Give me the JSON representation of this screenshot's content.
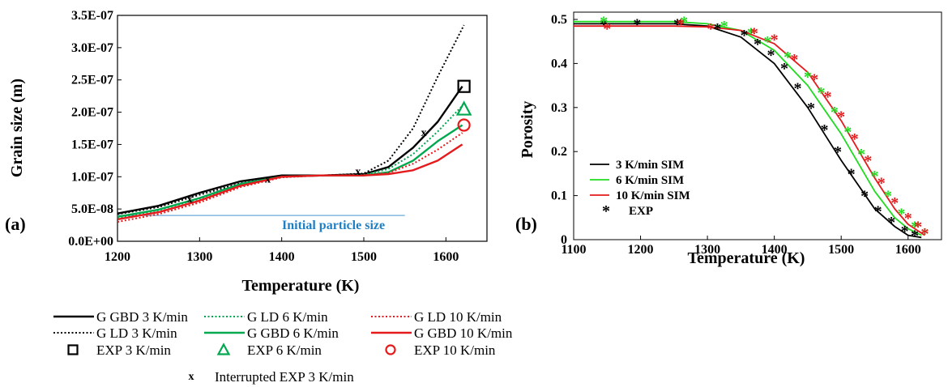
{
  "chart_data": [
    {
      "panel_label": "(a)",
      "type": "line",
      "xlabel": "Temperature (K)",
      "ylabel": "Grain size (m)",
      "xlim": [
        1200,
        1650
      ],
      "ylim": [
        0,
        3.5e-07
      ],
      "x_ticks": [
        "1200",
        "1300",
        "1400",
        "1500",
        "1600"
      ],
      "y_ticks": [
        "0.0E+00",
        "5.0E-08",
        "1.0E-07",
        "1.5E-07",
        "2.0E-07",
        "2.5E-07",
        "3.0E-07",
        "3.5E-07"
      ],
      "annotation": "Initial particle size",
      "initial_particle_size": 4e-08,
      "legend_position": "below",
      "series": [
        {
          "name": "G GBD 3 K/min",
          "color": "#000000",
          "style": "solid",
          "x": [
            1200,
            1250,
            1300,
            1350,
            1400,
            1450,
            1500,
            1530,
            1560,
            1590,
            1620
          ],
          "y": [
            4.3e-08,
            5.5e-08,
            7.5e-08,
            9.3e-08,
            1.02e-07,
            1.02e-07,
            1.04e-07,
            1.15e-07,
            1.45e-07,
            1.85e-07,
            2.4e-07
          ]
        },
        {
          "name": "G LD 3 K/min",
          "color": "#000000",
          "style": "dotted",
          "x": [
            1200,
            1250,
            1300,
            1350,
            1400,
            1450,
            1500,
            1530,
            1560,
            1590,
            1622
          ],
          "y": [
            4.2e-08,
            5.3e-08,
            7.2e-08,
            9e-08,
            1e-07,
            1.02e-07,
            1.05e-07,
            1.25e-07,
            1.75e-07,
            2.55e-07,
            3.35e-07
          ]
        },
        {
          "name": "G LD 6 K/min",
          "color": "#00a84f",
          "style": "dotted",
          "x": [
            1200,
            1250,
            1300,
            1350,
            1400,
            1450,
            1500,
            1530,
            1560,
            1590,
            1620
          ],
          "y": [
            3.6e-08,
            4.8e-08,
            6.6e-08,
            8.8e-08,
            1e-07,
            1.02e-07,
            1.03e-07,
            1.12e-07,
            1.35e-07,
            1.7e-07,
            2.1e-07
          ]
        },
        {
          "name": "G GBD 6 K/min",
          "color": "#00a84f",
          "style": "solid",
          "x": [
            1200,
            1250,
            1300,
            1350,
            1400,
            1450,
            1500,
            1530,
            1560,
            1590,
            1620
          ],
          "y": [
            3.8e-08,
            4.9e-08,
            6.7e-08,
            8.9e-08,
            1e-07,
            1.02e-07,
            1.02e-07,
            1.07e-07,
            1.25e-07,
            1.55e-07,
            1.8e-07
          ]
        },
        {
          "name": "G LD 10 K/min",
          "color": "#e41a1c",
          "style": "dotted",
          "x": [
            1200,
            1250,
            1300,
            1350,
            1400,
            1450,
            1500,
            1530,
            1560,
            1590,
            1620
          ],
          "y": [
            3e-08,
            4.2e-08,
            6e-08,
            8.4e-08,
            9.9e-08,
            1.02e-07,
            1.02e-07,
            1.06e-07,
            1.2e-07,
            1.42e-07,
            1.68e-07
          ]
        },
        {
          "name": "G GBD 10 K/min",
          "color": "#e41a1c",
          "style": "solid",
          "x": [
            1200,
            1250,
            1300,
            1350,
            1400,
            1450,
            1500,
            1530,
            1560,
            1590,
            1620
          ],
          "y": [
            3.4e-08,
            4.5e-08,
            6.3e-08,
            8.6e-08,
            1e-07,
            1.02e-07,
            1.02e-07,
            1.04e-07,
            1.1e-07,
            1.25e-07,
            1.5e-07
          ]
        }
      ],
      "markers": [
        {
          "name": "EXP 3 K/min",
          "color": "#000000",
          "symbol": "square",
          "x": [
            1622
          ],
          "y": [
            2.4e-07
          ]
        },
        {
          "name": "EXP 6 K/min",
          "color": "#00a84f",
          "symbol": "triangle",
          "x": [
            1622
          ],
          "y": [
            2.05e-07
          ]
        },
        {
          "name": "EXP 10 K/min",
          "color": "#e41a1c",
          "symbol": "circle",
          "x": [
            1622
          ],
          "y": [
            1.8e-07
          ]
        },
        {
          "name": "Interrupted EXP 3 K/min",
          "color": "#000000",
          "symbol": "x",
          "x": [
            1288,
            1383,
            1493,
            1573
          ],
          "y": [
            6.5e-08,
            9.6e-08,
            1.08e-07,
            1.68e-07
          ]
        }
      ],
      "legend": [
        {
          "label": "G GBD 3 K/min",
          "color": "#000000",
          "kind": "solid"
        },
        {
          "label": "G LD 6 K/min",
          "color": "#00a84f",
          "kind": "dotted"
        },
        {
          "label": "G LD 10 K/min",
          "color": "#e41a1c",
          "kind": "dotted"
        },
        {
          "label": "G LD 3 K/min",
          "color": "#000000",
          "kind": "dotted"
        },
        {
          "label": "G GBD 6 K/min",
          "color": "#00a84f",
          "kind": "solid"
        },
        {
          "label": "G GBD 10 K/min",
          "color": "#e41a1c",
          "kind": "solid"
        },
        {
          "label": "EXP 3 K/min",
          "color": "#000000",
          "kind": "square"
        },
        {
          "label": "EXP 6 K/min",
          "color": "#00a84f",
          "kind": "triangle"
        },
        {
          "label": "EXP 10 K/min",
          "color": "#e41a1c",
          "kind": "circle"
        },
        {
          "label": "Interrupted EXP 3 K/min",
          "color": "#000000",
          "kind": "x"
        }
      ]
    },
    {
      "panel_label": "(b)",
      "type": "line",
      "xlabel": "Temperature (K)",
      "ylabel": "Porosity",
      "xlim": [
        1100,
        1650
      ],
      "ylim": [
        0,
        0.5
      ],
      "x_ticks": [
        "1100",
        "1200",
        "1300",
        "1400",
        "1500",
        "1600"
      ],
      "y_ticks": [
        "0",
        "0.1",
        "0.2",
        "0.3",
        "0.4",
        "0.5"
      ],
      "legend_position": "lower-left",
      "series": [
        {
          "name": "3 K/min SIM",
          "color": "#000000",
          "x": [
            1100,
            1250,
            1300,
            1350,
            1400,
            1450,
            1500,
            1550,
            1580,
            1600,
            1620
          ],
          "y": [
            0.49,
            0.49,
            0.485,
            0.46,
            0.4,
            0.3,
            0.18,
            0.07,
            0.03,
            0.01,
            0.005
          ]
        },
        {
          "name": "6 K/min SIM",
          "color": "#1fdc1f",
          "x": [
            1100,
            1250,
            1300,
            1350,
            1400,
            1450,
            1500,
            1550,
            1580,
            1600,
            1620
          ],
          "y": [
            0.495,
            0.495,
            0.49,
            0.475,
            0.43,
            0.35,
            0.24,
            0.11,
            0.05,
            0.025,
            0.01
          ]
        },
        {
          "name": "10 K/min SIM",
          "color": "#e41a1c",
          "x": [
            1100,
            1250,
            1300,
            1350,
            1400,
            1450,
            1500,
            1550,
            1580,
            1600,
            1625
          ],
          "y": [
            0.485,
            0.485,
            0.483,
            0.475,
            0.445,
            0.38,
            0.27,
            0.14,
            0.07,
            0.035,
            0.01
          ]
        }
      ],
      "exp_series": [
        {
          "color": "#000000",
          "x": [
            1145,
            1195,
            1255,
            1315,
            1355,
            1375,
            1395,
            1415,
            1435,
            1455,
            1475,
            1495,
            1515,
            1535,
            1555,
            1575,
            1595,
            1610
          ],
          "y": [
            0.49,
            0.49,
            0.49,
            0.48,
            0.465,
            0.445,
            0.42,
            0.39,
            0.345,
            0.3,
            0.25,
            0.2,
            0.15,
            0.1,
            0.065,
            0.04,
            0.02,
            0.01
          ]
        },
        {
          "color": "#1fdc1f",
          "x": [
            1145,
            1265,
            1325,
            1365,
            1390,
            1420,
            1450,
            1470,
            1490,
            1510,
            1530,
            1550,
            1570,
            1590,
            1610,
            1625
          ],
          "y": [
            0.495,
            0.495,
            0.485,
            0.47,
            0.45,
            0.415,
            0.37,
            0.335,
            0.29,
            0.245,
            0.195,
            0.145,
            0.1,
            0.06,
            0.03,
            0.015
          ]
        },
        {
          "color": "#e41a1c",
          "x": [
            1150,
            1260,
            1305,
            1370,
            1400,
            1430,
            1460,
            1480,
            1500,
            1520,
            1540,
            1560,
            1580,
            1600,
            1615,
            1625
          ],
          "y": [
            0.48,
            0.49,
            0.48,
            0.47,
            0.455,
            0.41,
            0.365,
            0.325,
            0.28,
            0.23,
            0.18,
            0.13,
            0.085,
            0.05,
            0.03,
            0.015
          ]
        }
      ],
      "legend": [
        {
          "label": "3 K/min SIM",
          "color": "#000000",
          "kind": "line"
        },
        {
          "label": "6 K/min SIM",
          "color": "#1fdc1f",
          "kind": "line"
        },
        {
          "label": "10 K/min SIM",
          "color": "#e41a1c",
          "kind": "line"
        },
        {
          "label": "EXP",
          "color": "#000000",
          "kind": "asterisk"
        }
      ]
    }
  ]
}
